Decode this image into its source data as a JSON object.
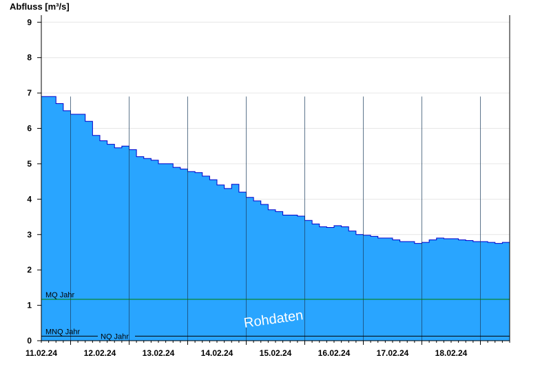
{
  "chart_data": {
    "type": "area",
    "ylabel": "Abfluss [m³/s]",
    "ylim": [
      0,
      9.2
    ],
    "yticks": [
      "0",
      "1",
      "2",
      "3",
      "4",
      "5",
      "6",
      "7",
      "8",
      "9"
    ],
    "x_day_labels": [
      "11.02.24",
      "12.02.24",
      "13.02.24",
      "14.02.24",
      "15.02.24",
      "16.02.24",
      "17.02.24",
      "18.02.24"
    ],
    "x_range": [
      "2024-02-10T12:00",
      "2024-02-18T12:00"
    ],
    "grid": true,
    "fill_color": "#29a5ff",
    "line_color": "#0000cc",
    "series": [
      {
        "x": [
          "2024-02-10T12:00",
          "2024-02-10T15:00",
          "2024-02-10T18:00",
          "2024-02-10T21:00",
          "2024-02-11T00:00",
          "2024-02-11T03:00",
          "2024-02-11T06:00",
          "2024-02-11T09:00",
          "2024-02-11T12:00",
          "2024-02-11T15:00",
          "2024-02-11T18:00",
          "2024-02-11T21:00",
          "2024-02-12T00:00",
          "2024-02-12T03:00",
          "2024-02-12T06:00",
          "2024-02-12T09:00",
          "2024-02-12T12:00",
          "2024-02-12T15:00",
          "2024-02-12T18:00",
          "2024-02-12T21:00",
          "2024-02-13T00:00",
          "2024-02-13T03:00",
          "2024-02-13T06:00",
          "2024-02-13T09:00",
          "2024-02-13T12:00",
          "2024-02-13T15:00",
          "2024-02-13T18:00",
          "2024-02-13T21:00",
          "2024-02-14T00:00",
          "2024-02-14T03:00",
          "2024-02-14T06:00",
          "2024-02-14T09:00",
          "2024-02-14T12:00",
          "2024-02-14T15:00",
          "2024-02-14T18:00",
          "2024-02-14T21:00",
          "2024-02-15T00:00",
          "2024-02-15T03:00",
          "2024-02-15T06:00",
          "2024-02-15T09:00",
          "2024-02-15T12:00",
          "2024-02-15T15:00",
          "2024-02-15T18:00",
          "2024-02-15T21:00",
          "2024-02-16T00:00",
          "2024-02-16T03:00",
          "2024-02-16T06:00",
          "2024-02-16T09:00",
          "2024-02-16T12:00",
          "2024-02-16T15:00",
          "2024-02-16T18:00",
          "2024-02-16T21:00",
          "2024-02-17T00:00",
          "2024-02-17T03:00",
          "2024-02-17T06:00",
          "2024-02-17T09:00",
          "2024-02-17T12:00",
          "2024-02-17T15:00",
          "2024-02-17T18:00",
          "2024-02-17T21:00",
          "2024-02-18T00:00",
          "2024-02-18T03:00",
          "2024-02-18T06:00",
          "2024-02-18T09:00",
          "2024-02-18T12:00"
        ],
        "values": [
          6.9,
          6.9,
          6.7,
          6.5,
          6.4,
          6.4,
          6.2,
          5.8,
          5.65,
          5.55,
          5.45,
          5.5,
          5.4,
          5.2,
          5.15,
          5.1,
          5.0,
          5.0,
          4.9,
          4.85,
          4.78,
          4.75,
          4.65,
          4.55,
          4.4,
          4.3,
          4.42,
          4.2,
          4.05,
          3.95,
          3.85,
          3.7,
          3.65,
          3.55,
          3.55,
          3.52,
          3.4,
          3.3,
          3.22,
          3.2,
          3.25,
          3.22,
          3.1,
          3.0,
          2.98,
          2.95,
          2.9,
          2.9,
          2.85,
          2.8,
          2.8,
          2.75,
          2.78,
          2.85,
          2.9,
          2.88,
          2.88,
          2.85,
          2.83,
          2.8,
          2.8,
          2.78,
          2.75,
          2.78,
          2.9
        ]
      }
    ],
    "reference_lines": [
      {
        "label": "MQ Jahr",
        "value": 1.17,
        "color": "#008000"
      },
      {
        "label": "MNQ Jahr",
        "value": 0.13,
        "color": "#000000"
      },
      {
        "label": "NQ Jahr",
        "value": 0.13,
        "color": "#000000"
      }
    ],
    "watermark": "Rohdaten"
  }
}
